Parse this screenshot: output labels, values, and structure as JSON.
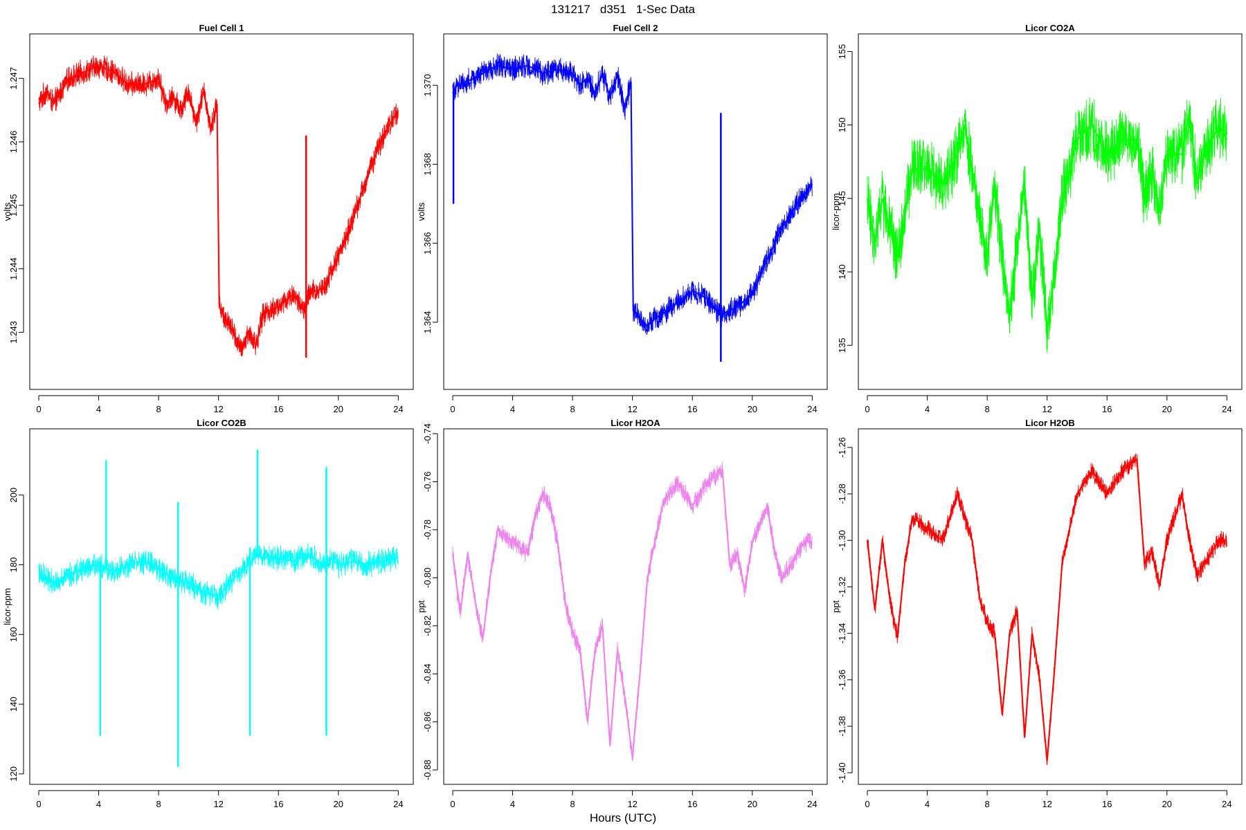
{
  "page": {
    "title": "131217   d351   1-Sec Data",
    "xlabel": "Hours (UTC)"
  },
  "chart_data": [
    {
      "type": "line",
      "title": "Fuel Cell 1",
      "ylabel": "volts",
      "color": "#ff0000",
      "xlim": [
        -0.6,
        25
      ],
      "ylim": [
        1.2421,
        1.2477
      ],
      "xticks": [
        0,
        4,
        8,
        12,
        16,
        20,
        24
      ],
      "yticks": [
        1.243,
        1.244,
        1.245,
        1.246,
        1.247
      ],
      "ytick_labels": [
        "1.243",
        "1.244",
        "1.245",
        "1.246",
        "1.247"
      ],
      "noise": 0.00022,
      "spikes": [
        {
          "x": 17.85,
          "y0": 1.2426,
          "y1": 1.2461
        }
      ],
      "series": [
        {
          "x": [
            0,
            0.5,
            1,
            2,
            3,
            4,
            5,
            6,
            7,
            8,
            8.5,
            9,
            9.5,
            10,
            10.5,
            11,
            11.5,
            11.9,
            12.05,
            12.5,
            13,
            13.5,
            14,
            14.5,
            15,
            16,
            17,
            17.8,
            18,
            19,
            20,
            21,
            22,
            23,
            24
          ],
          "y": [
            1.2466,
            1.2468,
            1.2466,
            1.247,
            1.2471,
            1.2472,
            1.2471,
            1.2469,
            1.2469,
            1.247,
            1.2466,
            1.2467,
            1.2465,
            1.2468,
            1.2463,
            1.2468,
            1.2462,
            1.2466,
            1.2434,
            1.2432,
            1.243,
            1.2427,
            1.243,
            1.2428,
            1.2433,
            1.2434,
            1.2436,
            1.2433,
            1.2436,
            1.2437,
            1.2442,
            1.2448,
            1.2455,
            1.2461,
            1.2465
          ]
        }
      ]
    },
    {
      "type": "line",
      "title": "Fuel Cell 2",
      "ylabel": "volts",
      "color": "#0000ff",
      "xlim": [
        -0.6,
        25
      ],
      "ylim": [
        1.3623,
        1.3713
      ],
      "xticks": [
        0,
        4,
        8,
        12,
        16,
        20,
        24
      ],
      "yticks": [
        1.364,
        1.366,
        1.368,
        1.37
      ],
      "ytick_labels": [
        "1.364",
        "1.366",
        "1.368",
        "1.370"
      ],
      "noise": 0.00035,
      "spikes": [
        {
          "x": 0.05,
          "y0": 1.367,
          "y1": 1.37
        },
        {
          "x": 17.9,
          "y0": 1.363,
          "y1": 1.3693
        }
      ],
      "series": [
        {
          "x": [
            0,
            0.3,
            1,
            2,
            3,
            4,
            5,
            6,
            7,
            8,
            8.5,
            9,
            9.5,
            10,
            10.5,
            11,
            11.5,
            11.9,
            12.05,
            12.5,
            13,
            13.5,
            14,
            15,
            16,
            17,
            17.8,
            18,
            19,
            20,
            21,
            22,
            23,
            24
          ],
          "y": [
            1.3698,
            1.37,
            1.3701,
            1.3703,
            1.3705,
            1.3704,
            1.3705,
            1.3703,
            1.3704,
            1.3703,
            1.37,
            1.3702,
            1.3698,
            1.3703,
            1.3697,
            1.3703,
            1.3694,
            1.3701,
            1.3643,
            1.3641,
            1.3639,
            1.3641,
            1.3642,
            1.3645,
            1.3648,
            1.3646,
            1.3642,
            1.3642,
            1.3644,
            1.3647,
            1.3656,
            1.3664,
            1.367,
            1.3675
          ]
        }
      ]
    },
    {
      "type": "line",
      "title": "Licor CO2A",
      "ylabel": "licor-ppm",
      "color": "#00ff00",
      "xlim": [
        -0.6,
        25
      ],
      "ylim": [
        132,
        156.2
      ],
      "xticks": [
        0,
        4,
        8,
        12,
        16,
        20,
        24
      ],
      "yticks": [
        135,
        140,
        145,
        150,
        155
      ],
      "ytick_labels": [
        "135",
        "140",
        "145",
        "150",
        "155"
      ],
      "noise": 2.4,
      "spikes": [],
      "series": [
        {
          "x": [
            0,
            0.5,
            1,
            1.5,
            2,
            2.5,
            3,
            4,
            5,
            6,
            6.5,
            7,
            7.5,
            8,
            8.5,
            9,
            9.5,
            10,
            10.5,
            11,
            11.5,
            12,
            12.5,
            13,
            14,
            15,
            16,
            17,
            18,
            18.5,
            19,
            19.5,
            20,
            21,
            21.5,
            22,
            22.5,
            23,
            23.5,
            24
          ],
          "y": [
            145,
            142,
            145,
            143,
            141,
            144,
            147,
            147,
            146,
            148,
            150,
            147,
            144,
            141,
            146,
            141,
            137,
            142,
            146,
            138,
            143,
            136,
            140,
            145,
            149,
            150,
            148,
            149,
            149,
            145,
            147,
            144,
            148,
            148,
            151,
            146,
            148,
            149,
            150,
            149
          ]
        }
      ]
    },
    {
      "type": "line",
      "title": "Licor CO2B",
      "ylabel": "licor-ppm",
      "color": "#00ffff",
      "xlim": [
        -0.6,
        25
      ],
      "ylim": [
        117,
        219
      ],
      "xticks": [
        0,
        4,
        8,
        12,
        16,
        20,
        24
      ],
      "yticks": [
        120,
        140,
        160,
        180,
        200
      ],
      "ytick_labels": [
        "120",
        "140",
        "160",
        "180",
        "200"
      ],
      "noise": 4,
      "spikes": [
        {
          "x": 4.1,
          "y0": 131,
          "y1": 180
        },
        {
          "x": 4.5,
          "y0": 180,
          "y1": 210
        },
        {
          "x": 9.3,
          "y0": 122,
          "y1": 198
        },
        {
          "x": 14.1,
          "y0": 131,
          "y1": 185
        },
        {
          "x": 14.6,
          "y0": 182,
          "y1": 213
        },
        {
          "x": 19.2,
          "y0": 131,
          "y1": 208
        }
      ],
      "series": [
        {
          "x": [
            0,
            1,
            2,
            3,
            4,
            5,
            6,
            7,
            8,
            9,
            10,
            11,
            12,
            13,
            14,
            14.6,
            15,
            16,
            17,
            18,
            19,
            19.5,
            20,
            21,
            22,
            23,
            24
          ],
          "y": [
            178,
            175,
            177,
            179,
            180,
            178,
            180,
            181,
            179,
            176,
            175,
            172,
            171,
            176,
            180,
            183,
            182,
            182,
            181,
            183,
            180,
            182,
            180,
            181,
            180,
            181,
            182
          ]
        }
      ]
    },
    {
      "type": "line",
      "title": "Licor H2OA",
      "ylabel": "ppt",
      "color": "#ee82ee",
      "xlim": [
        -0.6,
        25
      ],
      "ylim": [
        -0.886,
        -0.738
      ],
      "xticks": [
        0,
        4,
        8,
        12,
        16,
        20,
        24
      ],
      "yticks": [
        -0.88,
        -0.86,
        -0.84,
        -0.82,
        -0.8,
        -0.78,
        -0.76,
        -0.74
      ],
      "ytick_labels": [
        "-0.88",
        "-0.86",
        "-0.84",
        "-0.82",
        "-0.80",
        "-0.78",
        "-0.76",
        "-0.74"
      ],
      "noise": 0.0045,
      "spikes": [],
      "series": [
        {
          "x": [
            0,
            0.5,
            1,
            1.5,
            2,
            2.5,
            3,
            4,
            5,
            5.5,
            6,
            6.5,
            7,
            7.5,
            8,
            8.5,
            9,
            9.5,
            10,
            10.5,
            11,
            11.5,
            12,
            12.5,
            13,
            14,
            15,
            16,
            17,
            18,
            18.5,
            19,
            19.5,
            20,
            21,
            21.5,
            22,
            22.5,
            23,
            23.5,
            24
          ],
          "y": [
            -0.79,
            -0.815,
            -0.79,
            -0.81,
            -0.826,
            -0.8,
            -0.78,
            -0.785,
            -0.79,
            -0.775,
            -0.765,
            -0.77,
            -0.785,
            -0.81,
            -0.823,
            -0.83,
            -0.86,
            -0.83,
            -0.82,
            -0.87,
            -0.83,
            -0.85,
            -0.875,
            -0.84,
            -0.8,
            -0.77,
            -0.76,
            -0.77,
            -0.76,
            -0.755,
            -0.795,
            -0.79,
            -0.805,
            -0.785,
            -0.77,
            -0.79,
            -0.8,
            -0.795,
            -0.79,
            -0.785,
            -0.785
          ]
        }
      ]
    },
    {
      "type": "line",
      "title": "Licor H2OB",
      "ylabel": "ppt",
      "color": "#ff0000",
      "xlim": [
        -0.6,
        25
      ],
      "ylim": [
        -1.405,
        -1.252
      ],
      "xticks": [
        0,
        4,
        8,
        12,
        16,
        20,
        24
      ],
      "yticks": [
        -1.4,
        -1.38,
        -1.36,
        -1.34,
        -1.32,
        -1.3,
        -1.28,
        -1.26
      ],
      "ytick_labels": [
        "-1.40",
        "-1.38",
        "-1.36",
        "-1.34",
        "-1.32",
        "-1.30",
        "-1.28",
        "-1.26"
      ],
      "noise": 0.0045,
      "spikes": [],
      "series": [
        {
          "x": [
            0,
            0.5,
            1,
            1.5,
            2,
            2.5,
            3,
            4,
            5,
            5.5,
            6,
            6.5,
            7,
            7.5,
            8,
            8.5,
            9,
            9.5,
            10,
            10.5,
            11,
            11.5,
            12,
            12.5,
            13,
            14,
            15,
            16,
            17,
            18,
            18.5,
            19,
            19.5,
            20,
            21,
            21.5,
            22,
            22.5,
            23,
            23.5,
            24
          ],
          "y": [
            -1.3,
            -1.33,
            -1.3,
            -1.325,
            -1.342,
            -1.31,
            -1.29,
            -1.295,
            -1.3,
            -1.29,
            -1.28,
            -1.29,
            -1.3,
            -1.325,
            -1.335,
            -1.34,
            -1.375,
            -1.34,
            -1.33,
            -1.385,
            -1.34,
            -1.36,
            -1.395,
            -1.355,
            -1.31,
            -1.28,
            -1.27,
            -1.28,
            -1.27,
            -1.265,
            -1.31,
            -1.305,
            -1.32,
            -1.3,
            -1.28,
            -1.3,
            -1.315,
            -1.31,
            -1.305,
            -1.3,
            -1.3
          ]
        }
      ]
    }
  ]
}
